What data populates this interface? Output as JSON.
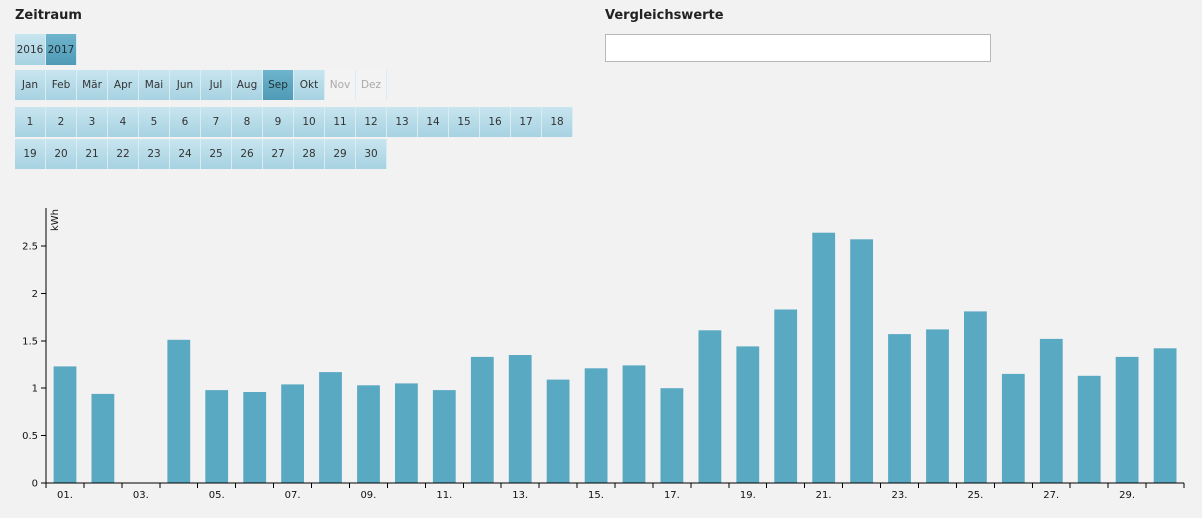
{
  "zeitraum": {
    "title": "Zeitraum",
    "years": [
      {
        "label": "2016",
        "state": "normal"
      },
      {
        "label": "2017",
        "state": "selected"
      }
    ],
    "months": [
      {
        "label": "Jan",
        "state": "normal"
      },
      {
        "label": "Feb",
        "state": "normal"
      },
      {
        "label": "Mär",
        "state": "normal"
      },
      {
        "label": "Apr",
        "state": "normal"
      },
      {
        "label": "Mai",
        "state": "normal"
      },
      {
        "label": "Jun",
        "state": "normal"
      },
      {
        "label": "Jul",
        "state": "normal"
      },
      {
        "label": "Aug",
        "state": "normal"
      },
      {
        "label": "Sep",
        "state": "selected"
      },
      {
        "label": "Okt",
        "state": "normal"
      },
      {
        "label": "Nov",
        "state": "disabled"
      },
      {
        "label": "Dez",
        "state": "disabled"
      }
    ],
    "days_row1": [
      "1",
      "2",
      "3",
      "4",
      "5",
      "6",
      "7",
      "8",
      "9",
      "10",
      "11",
      "12",
      "13",
      "14",
      "15",
      "16",
      "17",
      "18"
    ],
    "days_row2": [
      "19",
      "20",
      "21",
      "22",
      "23",
      "24",
      "25",
      "26",
      "27",
      "28",
      "29",
      "30"
    ]
  },
  "vergleich": {
    "title": "Vergleichswerte",
    "value": ""
  },
  "colors": {
    "bar": "#5aa9c3",
    "button": "#b8dcea",
    "button_selected": "#5fa7c1",
    "axis": "#000000"
  },
  "chart_data": {
    "type": "bar",
    "ylabel": "kWh",
    "ylim": [
      0,
      2.9
    ],
    "yticks": [
      0,
      0.5,
      1,
      1.5,
      2,
      2.5
    ],
    "ytick_labels": [
      "0",
      "0.5",
      "1",
      "1.5",
      "2",
      "2.5"
    ],
    "categories": [
      "01.",
      "02.",
      "03.",
      "04.",
      "05.",
      "06.",
      "07.",
      "08.",
      "09.",
      "10.",
      "11.",
      "12.",
      "13.",
      "14.",
      "15.",
      "16.",
      "17.",
      "18.",
      "19.",
      "20.",
      "21.",
      "22.",
      "23.",
      "24.",
      "25.",
      "26.",
      "27.",
      "28.",
      "29.",
      "30."
    ],
    "xtick_labels": [
      "01.",
      "",
      "03.",
      "",
      "05.",
      "",
      "07.",
      "",
      "09.",
      "",
      "11.",
      "",
      "13.",
      "",
      "15.",
      "",
      "17.",
      "",
      "19.",
      "",
      "21.",
      "",
      "23.",
      "",
      "25.",
      "",
      "27.",
      "",
      "29.",
      ""
    ],
    "values": [
      1.23,
      0.94,
      0,
      1.51,
      0.98,
      0.96,
      1.04,
      1.17,
      1.03,
      1.05,
      0.98,
      1.33,
      1.35,
      1.09,
      1.21,
      1.24,
      1.0,
      1.61,
      1.44,
      1.83,
      2.64,
      2.57,
      1.57,
      1.62,
      1.81,
      1.15,
      1.52,
      1.13,
      1.33,
      1.42
    ],
    "grid": false,
    "legend": "none"
  }
}
